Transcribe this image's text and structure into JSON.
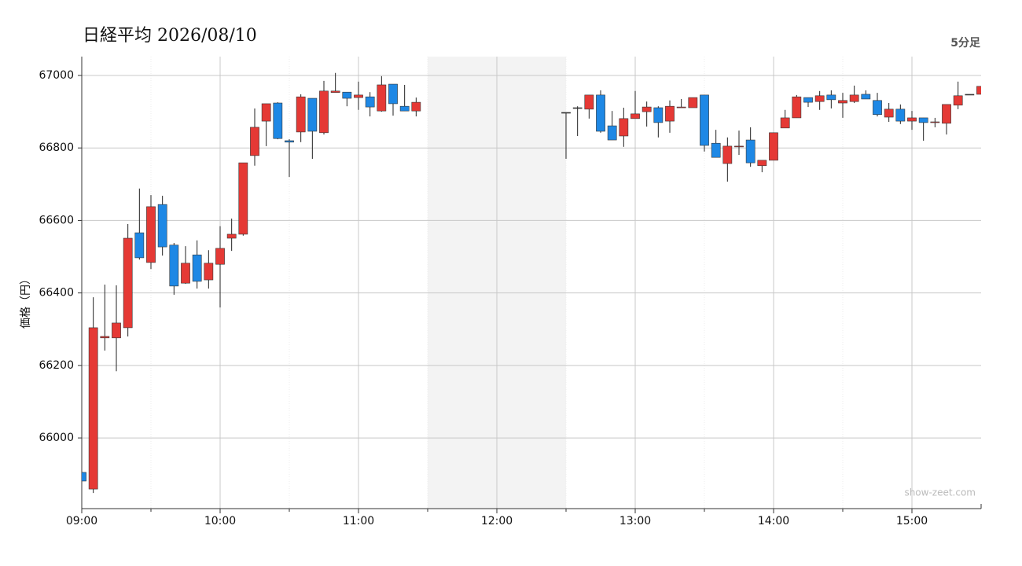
{
  "chart_data": {
    "type": "candlestick",
    "title": "日経平均 2026/08/10",
    "subtitle": "5分足",
    "ylabel": "価格（円）",
    "watermark": "show-zeet.com",
    "up_color": "#e53935",
    "down_color": "#1e88e5",
    "flat_color": "#333333",
    "grid": true,
    "break": [
      "11:30",
      "12:30"
    ],
    "xlim": [
      "09:00",
      "15:30"
    ],
    "xticks": [
      "09:00",
      "10:00",
      "11:00",
      "12:00",
      "13:00",
      "14:00",
      "15:00"
    ],
    "ylim": [
      65805,
      67052
    ],
    "yticks": [
      66000,
      66200,
      66400,
      66600,
      66800,
      67000
    ],
    "x": [
      "09:00",
      "09:05",
      "09:10",
      "09:15",
      "09:20",
      "09:25",
      "09:30",
      "09:35",
      "09:40",
      "09:45",
      "09:50",
      "09:55",
      "10:00",
      "10:05",
      "10:10",
      "10:15",
      "10:20",
      "10:25",
      "10:30",
      "10:35",
      "10:40",
      "10:45",
      "10:50",
      "10:55",
      "11:00",
      "11:05",
      "11:10",
      "11:15",
      "11:20",
      "11:25",
      "12:30",
      "12:35",
      "12:40",
      "12:45",
      "12:50",
      "12:55",
      "13:00",
      "13:05",
      "13:10",
      "13:15",
      "13:20",
      "13:25",
      "13:30",
      "13:35",
      "13:40",
      "13:45",
      "13:50",
      "13:55",
      "14:00",
      "14:05",
      "14:10",
      "14:15",
      "14:20",
      "14:25",
      "14:30",
      "14:35",
      "14:40",
      "14:45",
      "14:50",
      "14:55",
      "15:00",
      "15:05",
      "15:10",
      "15:15",
      "15:20",
      "15:25",
      "15:30"
    ],
    "open": [
      65905,
      65859,
      66276,
      66276,
      66304,
      66566,
      66484,
      66644,
      66532,
      66427,
      66505,
      66436,
      66479,
      66551,
      66562,
      66779,
      66874,
      66924,
      66820,
      66844,
      66937,
      66842,
      66953,
      66954,
      66939,
      66941,
      66902,
      66976,
      66915,
      66902,
      66898,
      66911,
      66907,
      66946,
      66861,
      66833,
      66881,
      66900,
      66911,
      66874,
      66911,
      66911,
      66946,
      66813,
      66757,
      66803,
      66822,
      66751,
      66766,
      66855,
      66883,
      66939,
      66928,
      66946,
      66924,
      66928,
      66948,
      66931,
      66885,
      66907,
      66874,
      66883,
      66870,
      66868,
      66918,
      66948,
      66948
    ],
    "high": [
      65905,
      66388,
      66423,
      66421,
      66590,
      66688,
      66670,
      66668,
      66538,
      66529,
      66545,
      66518,
      66584,
      66605,
      66759,
      66909,
      66922,
      66926,
      66824,
      66948,
      66937,
      66985,
      67007,
      66954,
      66983,
      66954,
      66998,
      66976,
      66974,
      66939,
      66898,
      66915,
      66946,
      66959,
      66902,
      66911,
      66957,
      66928,
      66915,
      66931,
      66935,
      66939,
      66946,
      66850,
      66829,
      66848,
      66857,
      66766,
      66842,
      66905,
      66946,
      66939,
      66957,
      66959,
      66952,
      66972,
      66959,
      66952,
      66924,
      66920,
      66902,
      66883,
      66883,
      66920,
      66983,
      66948,
      66970
    ],
    "low": [
      65881,
      65848,
      66241,
      66184,
      66280,
      66492,
      66466,
      66503,
      66395,
      66425,
      66412,
      66412,
      66360,
      66516,
      66558,
      66751,
      66805,
      66824,
      66720,
      66816,
      66770,
      66837,
      66953,
      66915,
      66905,
      66887,
      66900,
      66889,
      66902,
      66887,
      66770,
      66833,
      66881,
      66842,
      66822,
      66803,
      66881,
      66859,
      66829,
      66842,
      66911,
      66911,
      66790,
      66774,
      66707,
      66781,
      66748,
      66733,
      66766,
      66855,
      66883,
      66913,
      66905,
      66909,
      66883,
      66924,
      66935,
      66887,
      66872,
      66866,
      66850,
      66820,
      66857,
      66837,
      66907,
      66948,
      66948
    ],
    "close": [
      65881,
      66304,
      66280,
      66317,
      66551,
      66497,
      66638,
      66527,
      66419,
      66482,
      66432,
      66482,
      66523,
      66562,
      66759,
      66857,
      66922,
      66826,
      66816,
      66941,
      66846,
      66957,
      66957,
      66937,
      66946,
      66913,
      66974,
      66922,
      66902,
      66926,
      66898,
      66911,
      66946,
      66846,
      66822,
      66881,
      66894,
      66913,
      66870,
      66915,
      66913,
      66939,
      66807,
      66774,
      66805,
      66805,
      66759,
      66766,
      66842,
      66883,
      66941,
      66926,
      66944,
      66933,
      66931,
      66946,
      66935,
      66892,
      66907,
      66874,
      66883,
      66870,
      66872,
      66920,
      66944,
      66948,
      66970
    ]
  }
}
